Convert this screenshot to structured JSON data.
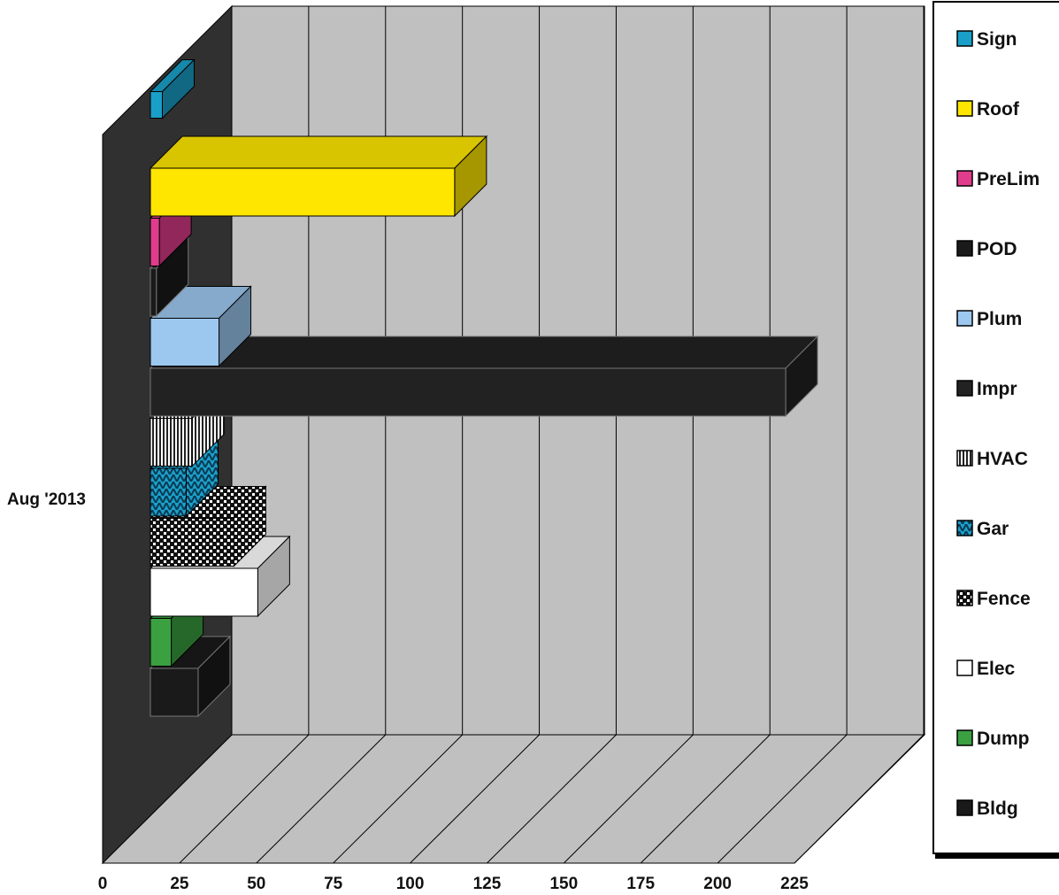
{
  "chart_data": {
    "type": "bar",
    "orientation": "horizontal",
    "style": "3d",
    "category": "Aug '2013",
    "xlim": [
      0,
      225
    ],
    "x_ticks": [
      "0",
      "25",
      "50",
      "75",
      "100",
      "125",
      "150",
      "175",
      "200",
      "225"
    ],
    "grid": true,
    "legend_position": "right",
    "series": [
      {
        "name": "Sign",
        "value": 4,
        "color": "#1aa0c8",
        "pattern": "solid"
      },
      {
        "name": "Roof",
        "value": 102,
        "color": "#ffe600",
        "pattern": "solid"
      },
      {
        "name": "PreLim",
        "value": 3,
        "color": "#e03c8c",
        "pattern": "solid"
      },
      {
        "name": "POD",
        "value": 2,
        "color": "#1a1a1a",
        "pattern": "solid"
      },
      {
        "name": "Plum",
        "value": 23,
        "color": "#9cc8f0",
        "pattern": "solid"
      },
      {
        "name": "Impr",
        "value": 213,
        "color": "#222222",
        "pattern": "solid"
      },
      {
        "name": "HVAC",
        "value": 14,
        "color": "#ffffff",
        "pattern": "vstripes"
      },
      {
        "name": "Gar",
        "value": 12,
        "color": "#1aa0c8",
        "pattern": "weave"
      },
      {
        "name": "Fence",
        "value": 28,
        "color": "#ffffff",
        "pattern": "checker"
      },
      {
        "name": "Elec",
        "value": 36,
        "color": "#ffffff",
        "pattern": "solid"
      },
      {
        "name": "Dump",
        "value": 7,
        "color": "#3aa040",
        "pattern": "solid"
      },
      {
        "name": "Bldg",
        "value": 16,
        "color": "#1a1a1a",
        "pattern": "solid"
      }
    ]
  }
}
